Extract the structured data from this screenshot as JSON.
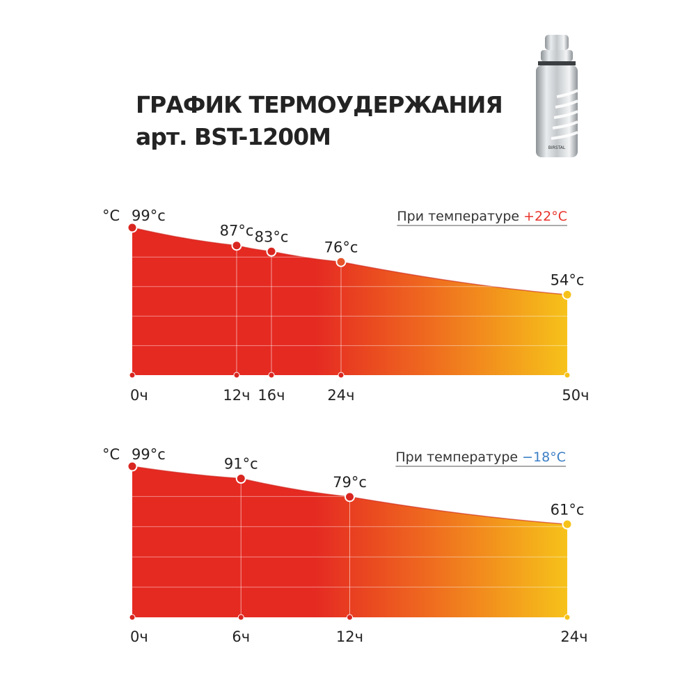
{
  "title": {
    "line1": "ГРАФИК ТЕРМОУДЕРЖАНИЯ",
    "line2": "арт. BST-1200M"
  },
  "product_brand_text": "BIRSTAL",
  "colors": {
    "red": "#e52a22",
    "orange": "#ef6a1f",
    "yellow": "#f6c21a",
    "warm_accent": "#e8322a",
    "cold_accent": "#3a7ec4"
  },
  "chart_data": [
    {
      "type": "area",
      "unit_label": "°C",
      "condition_label": "При температуре ",
      "condition_value": "+22°C",
      "condition_color": "#e8322a",
      "x": [
        0,
        12,
        16,
        24,
        50
      ],
      "x_labels": [
        "0ч",
        "12ч",
        "16ч",
        "24ч",
        "50ч"
      ],
      "y": [
        99,
        87,
        83,
        76,
        54
      ],
      "point_labels": [
        "99°c",
        "87°c",
        "83°c",
        "76°c",
        "54°c"
      ],
      "xlim": [
        0,
        50
      ],
      "ylim": [
        0,
        99
      ],
      "grid": true
    },
    {
      "type": "area",
      "unit_label": "°C",
      "condition_label": "При температуре ",
      "condition_value": "−18°C",
      "condition_color": "#3a7ec4",
      "x": [
        0,
        6,
        12,
        24
      ],
      "x_labels": [
        "0ч",
        "6ч",
        "12ч",
        "24ч"
      ],
      "y": [
        99,
        91,
        79,
        61
      ],
      "point_labels": [
        "99°c",
        "91°c",
        "79°c",
        "61°c"
      ],
      "xlim": [
        0,
        24
      ],
      "ylim": [
        0,
        99
      ],
      "grid": true
    }
  ]
}
